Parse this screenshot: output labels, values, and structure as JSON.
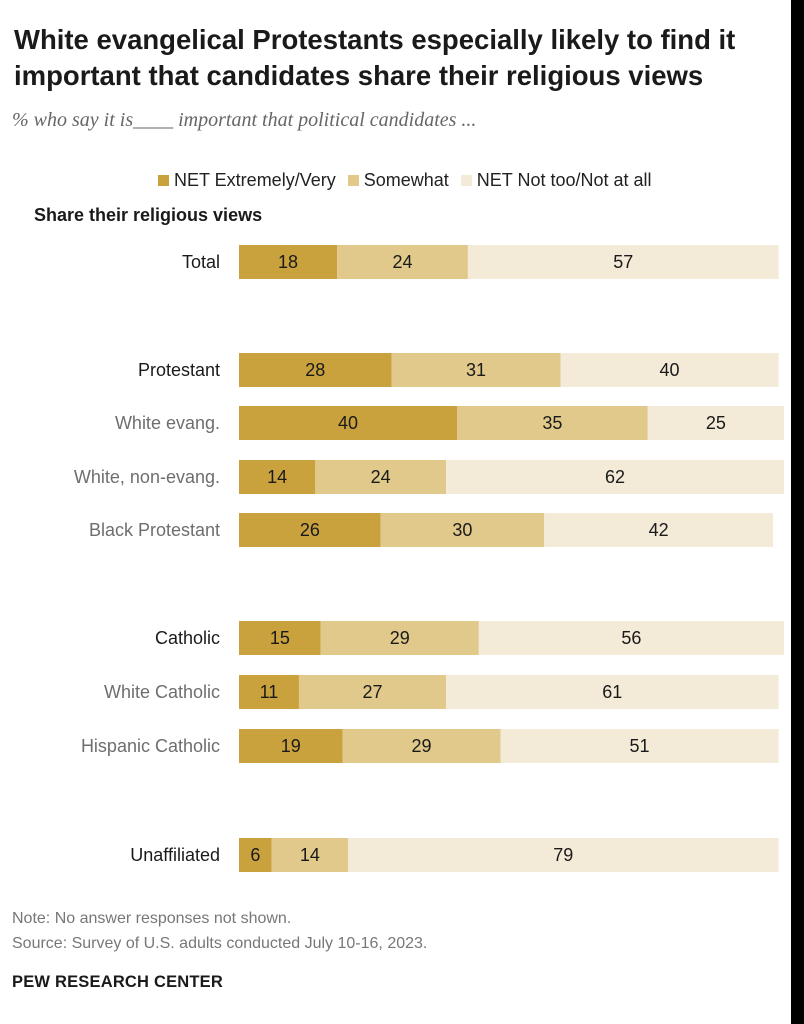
{
  "title": "White evangelical Protestants especially likely to find it important that candidates share their religious views",
  "subtitle": "% who say it is____ important that political candidates ...",
  "section_header": "Share their religious views",
  "note": "Note: No answer responses not shown.",
  "source": "Source: Survey of U.S. adults conducted July 10-16, 2023.",
  "org": "PEW RESEARCH CENTER",
  "colors": {
    "extremely_very": "#c9a23e",
    "somewhat": "#e0c98a",
    "not_too": "#f3ead7",
    "label_dark": "#1a1a1a",
    "label_grey": "#6e6e6e"
  },
  "chart_data": {
    "type": "bar",
    "orientation": "horizontal",
    "stacked": true,
    "title": "White evangelical Protestants especially likely to find it important that candidates share their religious views",
    "categories": [
      "Total",
      "Protestant",
      "White evang.",
      "White, non-evang.",
      "Black Protestant",
      "Catholic",
      "White Catholic",
      "Hispanic Catholic",
      "Unaffiliated"
    ],
    "category_style": [
      "main",
      "main",
      "sub",
      "sub",
      "sub",
      "main",
      "sub",
      "sub",
      "main"
    ],
    "series": [
      {
        "name": "NET Extremely/Very",
        "values": [
          18,
          28,
          40,
          14,
          26,
          15,
          11,
          19,
          6
        ]
      },
      {
        "name": "Somewhat",
        "values": [
          24,
          31,
          35,
          24,
          30,
          29,
          27,
          29,
          14
        ]
      },
      {
        "name": "NET Not too/Not at all",
        "values": [
          57,
          40,
          25,
          62,
          42,
          56,
          61,
          51,
          79
        ]
      }
    ],
    "xlim": [
      0,
      100
    ],
    "legend_position": "top",
    "grid": false
  }
}
